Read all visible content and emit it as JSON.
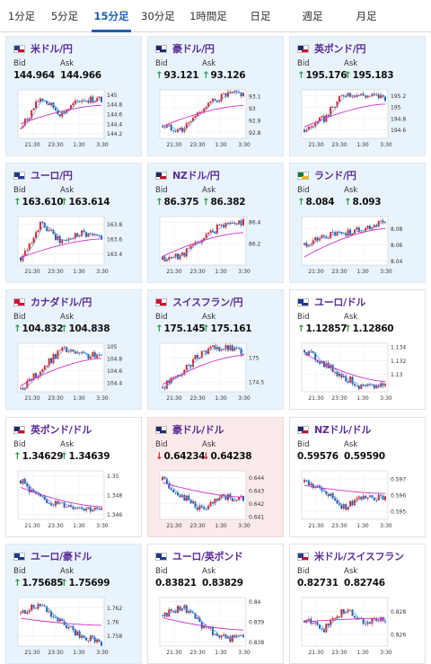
{
  "tabs": [
    "1分足",
    "5分足",
    "15分足",
    "30分足",
    "1時間足",
    "日足",
    "週足",
    "月足"
  ],
  "active_tab": "15分足",
  "bid_label": "Bid",
  "ask_label": "Ask",
  "x_ticks": [
    "21:30",
    "23:30",
    "1:30",
    "3:30"
  ],
  "colors": {
    "accent": "#1f5fb4",
    "up": "#2a9d4a",
    "down": "#d9262b",
    "bull_candle": "#d9262b",
    "bear_candle": "#1f5fb4",
    "ma_line": "#cc33cc",
    "ma_short": "#5aa0e0",
    "name": "#5b2d95"
  },
  "cards": [
    {
      "name": "米ドル/円",
      "flag": "us",
      "bg": "blue",
      "bid": "144.964",
      "ask": "144.966",
      "dir": "none",
      "y_ticks": [
        "145",
        "144.8",
        "144.6",
        "144.4",
        "144.2"
      ],
      "ylim": [
        144.1,
        145.1
      ],
      "ma": [
        144.4,
        144.78
      ],
      "trend": [
        144.3,
        144.95,
        144.6,
        144.9,
        144.9
      ]
    },
    {
      "name": "豪ドル/円",
      "flag": "au",
      "bg": "blue",
      "bid": "93.121",
      "ask": "93.126",
      "dir": "up",
      "y_ticks": [
        "93.1",
        "93",
        "92.9",
        "92.8"
      ],
      "ylim": [
        92.75,
        93.15
      ],
      "ma": [
        92.85,
        93.02
      ],
      "trend": [
        92.85,
        92.82,
        93.0,
        93.1,
        93.12
      ]
    },
    {
      "name": "英ポンド/円",
      "flag": "gb",
      "bg": "blue",
      "bid": "195.176",
      "ask": "195.183",
      "dir": "up",
      "y_ticks": [
        "195.2",
        "195",
        "194.8",
        "194.6"
      ],
      "ylim": [
        194.45,
        195.3
      ],
      "ma": [
        194.65,
        195.05
      ],
      "trend": [
        194.6,
        194.8,
        195.25,
        195.2,
        195.18
      ]
    },
    {
      "name": "ユーロ/円",
      "flag": "eu",
      "bg": "blue",
      "bid": "163.610",
      "ask": "163.614",
      "dir": "up",
      "y_ticks": [
        "163.8",
        "163.6",
        "163.4"
      ],
      "ylim": [
        163.25,
        163.9
      ],
      "ma": [
        163.35,
        163.6
      ],
      "trend": [
        163.35,
        163.8,
        163.55,
        163.7,
        163.6
      ]
    },
    {
      "name": "NZドル/円",
      "flag": "nz",
      "bg": "blue",
      "bid": "86.375",
      "ask": "86.382",
      "dir": "up",
      "y_ticks": [
        "86.4",
        "86.2"
      ],
      "ylim": [
        86.0,
        86.45
      ],
      "ma": [
        86.08,
        86.3
      ],
      "trend": [
        86.05,
        86.1,
        86.25,
        86.38,
        86.4
      ]
    },
    {
      "name": "ランド/円",
      "flag": "za",
      "bg": "blue",
      "bid": "8.084",
      "ask": "8.093",
      "dir": "up",
      "y_ticks": [
        "8.08",
        "8.06",
        "8.04"
      ],
      "ylim": [
        8.035,
        8.095
      ],
      "ma": [
        8.045,
        8.08
      ],
      "trend": [
        8.06,
        8.07,
        8.075,
        8.08,
        8.09
      ]
    },
    {
      "name": "カナダドル/円",
      "flag": "ca",
      "bg": "blue",
      "bid": "104.832",
      "ask": "104.838",
      "dir": "up",
      "y_ticks": [
        "105",
        "104.8",
        "104.6",
        "104.4"
      ],
      "ylim": [
        104.25,
        105.05
      ],
      "ma": [
        104.35,
        104.8
      ],
      "trend": [
        104.3,
        104.6,
        104.95,
        104.85,
        104.83
      ]
    },
    {
      "name": "スイスフラン/円",
      "flag": "ch",
      "bg": "blue",
      "bid": "175.145",
      "ask": "175.161",
      "dir": "up",
      "y_ticks": [
        "175",
        "174.5"
      ],
      "ylim": [
        174.3,
        175.3
      ],
      "ma": [
        174.45,
        175.05
      ],
      "trend": [
        174.4,
        174.7,
        175.15,
        175.2,
        175.14
      ]
    },
    {
      "name": "ユーロ/ドル",
      "flag": "eu",
      "bg": "white",
      "bid": "1.12857",
      "ask": "1.12860",
      "dir": "up",
      "y_ticks": [
        "1.134",
        "1.132",
        "1.13"
      ],
      "ylim": [
        1.1275,
        1.1345
      ],
      "ma": [
        1.133,
        1.129
      ],
      "trend": [
        1.1335,
        1.1315,
        1.1295,
        1.128,
        1.1286
      ]
    },
    {
      "name": "英ポンド/ドル",
      "flag": "gb",
      "bg": "white",
      "bid": "1.34629",
      "ask": "1.34639",
      "dir": "up",
      "y_ticks": [
        "1.35",
        "1.348",
        "1.346"
      ],
      "ylim": [
        1.3455,
        1.3505
      ],
      "ma": [
        1.3488,
        1.3468
      ],
      "trend": [
        1.3495,
        1.3475,
        1.347,
        1.3468,
        1.3463
      ]
    },
    {
      "name": "豪ドル/ドル",
      "flag": "au",
      "bg": "pink",
      "bid": "0.64234",
      "ask": "0.64238",
      "dir": "down",
      "y_ticks": [
        "0.644",
        "0.643",
        "0.642",
        "0.641"
      ],
      "ylim": [
        0.6408,
        0.6445
      ],
      "ma": [
        0.6436,
        0.6425
      ],
      "trend": [
        0.6438,
        0.6425,
        0.6415,
        0.6425,
        0.6423
      ]
    },
    {
      "name": "NZドル/ドル",
      "flag": "nz",
      "bg": "white",
      "bid": "0.59576",
      "ask": "0.59590",
      "dir": "none",
      "y_ticks": [
        "0.597",
        "0.596",
        "0.595"
      ],
      "ylim": [
        0.5945,
        0.5975
      ],
      "ma": [
        0.5966,
        0.5961
      ],
      "trend": [
        0.5968,
        0.5962,
        0.5952,
        0.596,
        0.5958
      ]
    },
    {
      "name": "ユーロ/豪ドル",
      "flag": "eu",
      "bg": "blue",
      "bid": "1.75685",
      "ask": "1.75699",
      "dir": "up",
      "y_ticks": [
        "1.762",
        "1.76",
        "1.758"
      ],
      "ylim": [
        1.7565,
        1.7635
      ],
      "ma": [
        1.7605,
        1.7595
      ],
      "trend": [
        1.7612,
        1.7625,
        1.7598,
        1.758,
        1.7569
      ]
    },
    {
      "name": "ユーロ/英ポンド",
      "flag": "eu",
      "bg": "white",
      "bid": "0.83821",
      "ask": "0.83829",
      "dir": "none",
      "y_ticks": [
        "0.84",
        "0.839",
        "0.838"
      ],
      "ylim": [
        0.8378,
        0.8402
      ],
      "ma": [
        0.8392,
        0.8386
      ],
      "trend": [
        0.8393,
        0.8398,
        0.8388,
        0.8382,
        0.8382
      ]
    },
    {
      "name": "米ドル/スイスフラン",
      "flag": "us",
      "bg": "white",
      "bid": "0.82731",
      "ask": "0.82746",
      "dir": "none",
      "y_ticks": [
        "0.828",
        "0.826"
      ],
      "ylim": [
        0.825,
        0.8292
      ],
      "ma": [
        0.8271,
        0.8274
      ],
      "trend": [
        0.8272,
        0.8265,
        0.8282,
        0.827,
        0.8274
      ]
    }
  ]
}
